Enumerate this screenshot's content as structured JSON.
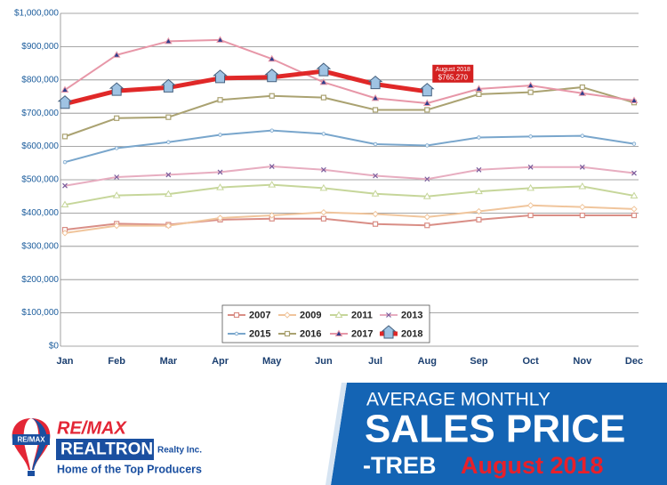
{
  "chart_data": {
    "type": "line",
    "categories": [
      "Jan",
      "Feb",
      "Mar",
      "Apr",
      "May",
      "Jun",
      "Jul",
      "Aug",
      "Sep",
      "Oct",
      "Nov",
      "Dec"
    ],
    "ylim": [
      0,
      1000000
    ],
    "yticks": [
      {
        "value": 0,
        "label": "$0"
      },
      {
        "value": 100000,
        "label": "$100,000"
      },
      {
        "value": 200000,
        "label": "$200,000"
      },
      {
        "value": 300000,
        "label": "$300,000"
      },
      {
        "value": 400000,
        "label": "$400,000"
      },
      {
        "value": 500000,
        "label": "$500,000"
      },
      {
        "value": 600000,
        "label": "$600,000"
      },
      {
        "value": 700000,
        "label": "$700,000"
      },
      {
        "value": 800000,
        "label": "$800,000"
      },
      {
        "value": 900000,
        "label": "$900,000"
      },
      {
        "value": 1000000,
        "label": "$1,000,000"
      }
    ],
    "grid": true,
    "legend": "bottom",
    "series": [
      {
        "name": "2007",
        "color": "#d98e86",
        "marker": "square",
        "values": [
          350000,
          368000,
          365000,
          380000,
          383000,
          383000,
          367000,
          363000,
          380000,
          393000,
          393000,
          393000
        ]
      },
      {
        "name": "2009",
        "color": "#f0c59c",
        "marker": "diamond",
        "values": [
          340000,
          362000,
          362000,
          385000,
          393000,
          402000,
          397000,
          388000,
          405000,
          423000,
          418000,
          412000
        ]
      },
      {
        "name": "2011",
        "color": "#c6d69a",
        "marker": "triangle",
        "values": [
          425000,
          453000,
          457000,
          477000,
          485000,
          475000,
          458000,
          450000,
          465000,
          475000,
          480000,
          452000
        ]
      },
      {
        "name": "2013",
        "color": "#e7adc0",
        "marker": "x",
        "values": [
          482000,
          508000,
          515000,
          523000,
          540000,
          530000,
          512000,
          502000,
          530000,
          538000,
          538000,
          520000
        ]
      },
      {
        "name": "2015",
        "color": "#79a6cc",
        "marker": "dash",
        "values": [
          553000,
          595000,
          613000,
          635000,
          648000,
          638000,
          607000,
          603000,
          627000,
          630000,
          632000,
          608000
        ]
      },
      {
        "name": "2016",
        "color": "#aaa271",
        "marker": "square",
        "values": [
          630000,
          685000,
          688000,
          740000,
          752000,
          747000,
          710000,
          710000,
          757000,
          763000,
          778000,
          732000
        ]
      },
      {
        "name": "2017",
        "color": "#e797a8",
        "marker": "triangle",
        "values": [
          770000,
          875000,
          916000,
          920000,
          863000,
          793000,
          745000,
          730000,
          773000,
          783000,
          760000,
          738000
        ]
      },
      {
        "name": "2018",
        "color": "#e02828",
        "marker": "house",
        "width": 5,
        "values": [
          728000,
          767000,
          777000,
          805000,
          808000,
          826000,
          787000,
          765270,
          null,
          null,
          null,
          null
        ]
      }
    ],
    "annotation": {
      "title": "August 2018",
      "value_label": "$765,270"
    }
  },
  "banner": {
    "line1": "AVERAGE MONTHLY",
    "line2": "SALES PRICE",
    "line3": "-TREB",
    "month": "August 2018",
    "balloon": "RE/MAX",
    "brand": "RE/MAX",
    "office": "REALTRON",
    "suffix": "Realty Inc.",
    "tagline": "Home of the Top Producers"
  }
}
